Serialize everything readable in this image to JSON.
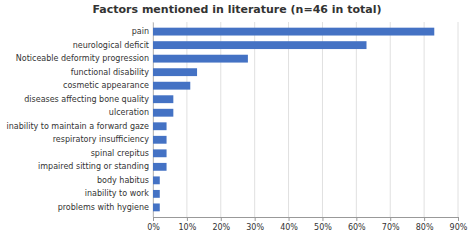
{
  "chart_data": {
    "type": "bar",
    "orientation": "horizontal",
    "title": "Factors mentioned in literature (n=46 in total)",
    "categories": [
      "pain",
      "neurological deficit",
      "Noticeable deformity progression",
      "functional disability",
      "cosmetic appearance",
      "diseases affecting bone quality",
      "ulceration",
      "inability to maintain a forward gaze",
      "respiratory insufficiency",
      "spinal crepitus",
      "impaired sitting or standing",
      "body habitus",
      "inability to work",
      "problems with hygiene"
    ],
    "values": [
      83,
      63,
      28,
      13,
      11,
      6,
      6,
      4,
      4,
      4,
      4,
      2,
      2,
      2
    ],
    "color": "#4472C4",
    "xlim": [
      0,
      90
    ],
    "xticks": [
      {
        "value": 0,
        "label": "0%"
      },
      {
        "value": 10,
        "label": "10%"
      },
      {
        "value": 20,
        "label": "20%"
      },
      {
        "value": 30,
        "label": "30%"
      },
      {
        "value": 40,
        "label": "40%"
      },
      {
        "value": 50,
        "label": "50%"
      },
      {
        "value": 60,
        "label": "60%"
      },
      {
        "value": 70,
        "label": "70%"
      },
      {
        "value": 80,
        "label": "80%"
      },
      {
        "value": 90,
        "label": "90%"
      }
    ],
    "grid": true
  }
}
